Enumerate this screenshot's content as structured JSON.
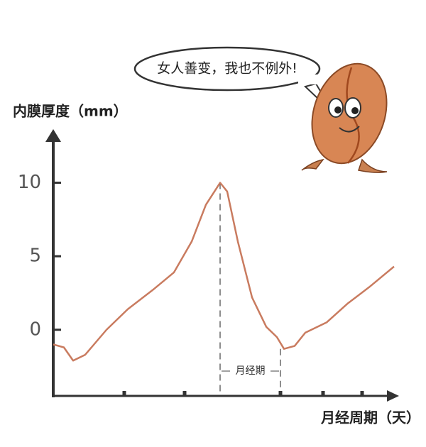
{
  "chart_data": {
    "type": "line",
    "title": "女人善变，我也不例外!",
    "y_label": "内膜厚度（mm）",
    "x_label": "月经周期（天）",
    "x": [
      0,
      1.5,
      2.8,
      4.5,
      7.5,
      10.5,
      14,
      17,
      19.5,
      21.5,
      23.5,
      24.5,
      26,
      28,
      30,
      31.5,
      32.5,
      34,
      35.5,
      38.5,
      41.5,
      44.5,
      48
    ],
    "series": [
      {
        "color": "#c97b5f",
        "values": [
          -1,
          -1.2,
          -2.1,
          -1.7,
          0,
          1.4,
          2.7,
          3.9,
          6.0,
          8.5,
          10,
          9.4,
          6.0,
          2.2,
          0.2,
          -0.5,
          -1.3,
          -1.1,
          -0.2,
          0.5,
          1.8,
          2.9,
          4.3
        ]
      }
    ],
    "xlim": [
      0,
      48
    ],
    "xticks": [
      10,
      18.5,
      32,
      38,
      43.5
    ],
    "ylim": [
      -4.5,
      13.5
    ],
    "yticks": [
      0,
      5,
      10
    ],
    "annotation": {
      "label": "月经期",
      "x_range": [
        23.5,
        32
      ]
    }
  }
}
